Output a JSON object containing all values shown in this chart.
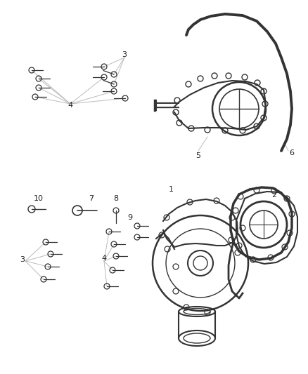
{
  "bg_color": "#ffffff",
  "lc": "#bbbbbb",
  "dc": "#333333",
  "figsize": [
    4.38,
    5.33
  ],
  "dpi": 100,
  "xlim": [
    0,
    438
  ],
  "ylim": [
    0,
    533
  ]
}
